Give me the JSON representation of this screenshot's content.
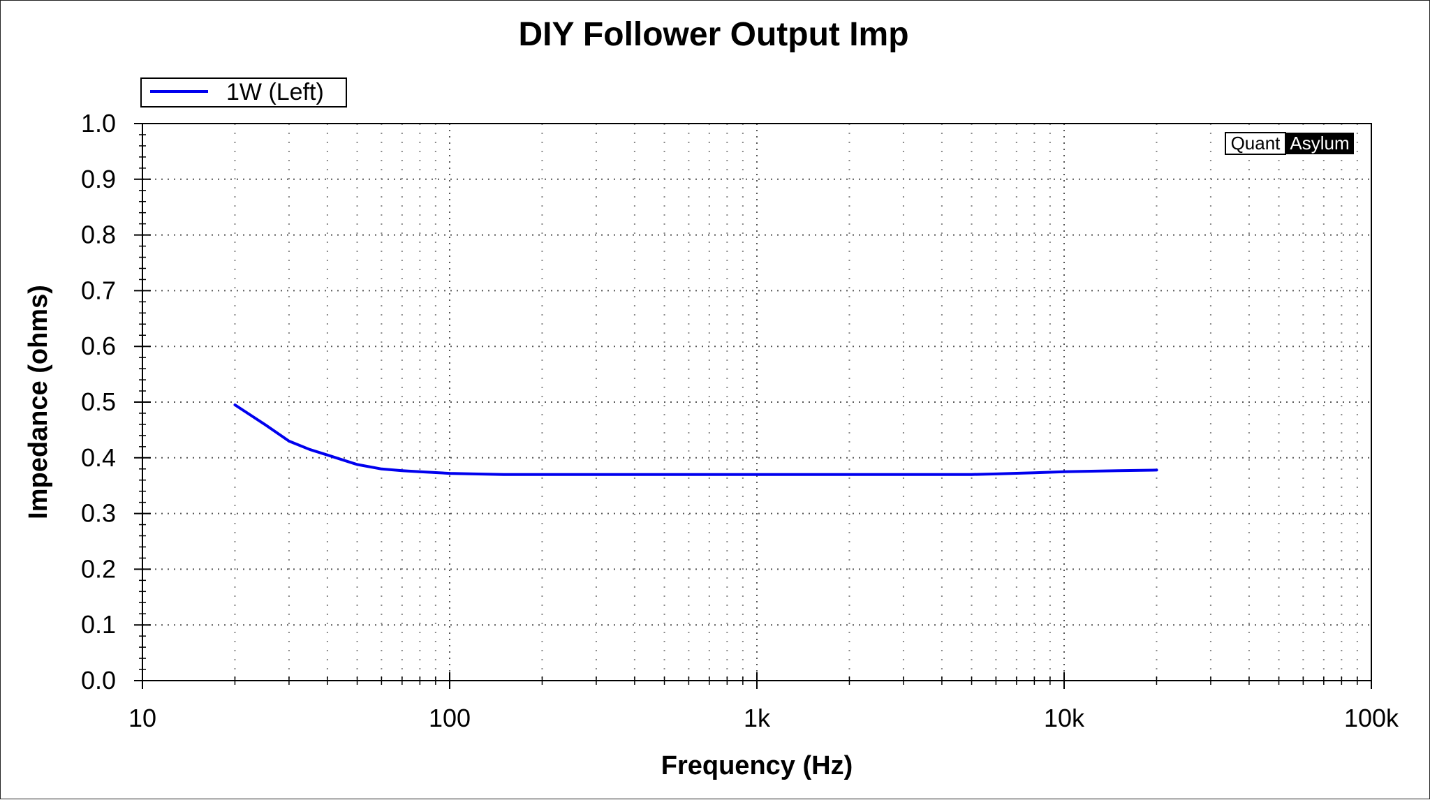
{
  "chart_data": {
    "type": "line",
    "title": "DIY Follower Output Imp",
    "xlabel": "Frequency (Hz)",
    "ylabel": "Impedance (ohms)",
    "x_scale": "log",
    "xlim": [
      10,
      100000
    ],
    "ylim": [
      0.0,
      1.0
    ],
    "x_ticks": [
      10,
      100,
      1000,
      10000,
      100000
    ],
    "x_tick_labels": [
      "10",
      "100",
      "1k",
      "10k",
      "100k"
    ],
    "y_ticks": [
      0.0,
      0.1,
      0.2,
      0.3,
      0.4,
      0.5,
      0.6,
      0.7,
      0.8,
      0.9,
      1.0
    ],
    "y_tick_labels": [
      "0.0",
      "0.1",
      "0.2",
      "0.3",
      "0.4",
      "0.5",
      "0.6",
      "0.7",
      "0.8",
      "0.9",
      "1.0"
    ],
    "grid": true,
    "legend_position": "top-left, above plot",
    "watermark": {
      "part1": "Quant",
      "part2": "Asylum"
    },
    "series": [
      {
        "name": "1W (Left)",
        "color": "#0000ee",
        "x": [
          20,
          25,
          30,
          35,
          40,
          50,
          60,
          70,
          80,
          100,
          120,
          150,
          200,
          300,
          500,
          1000,
          2000,
          3000,
          5000,
          6000,
          8000,
          10000,
          15000,
          20000
        ],
        "y": [
          0.495,
          0.46,
          0.43,
          0.415,
          0.405,
          0.388,
          0.38,
          0.377,
          0.375,
          0.372,
          0.371,
          0.37,
          0.37,
          0.37,
          0.37,
          0.37,
          0.37,
          0.37,
          0.37,
          0.371,
          0.373,
          0.375,
          0.377,
          0.378
        ]
      }
    ]
  }
}
